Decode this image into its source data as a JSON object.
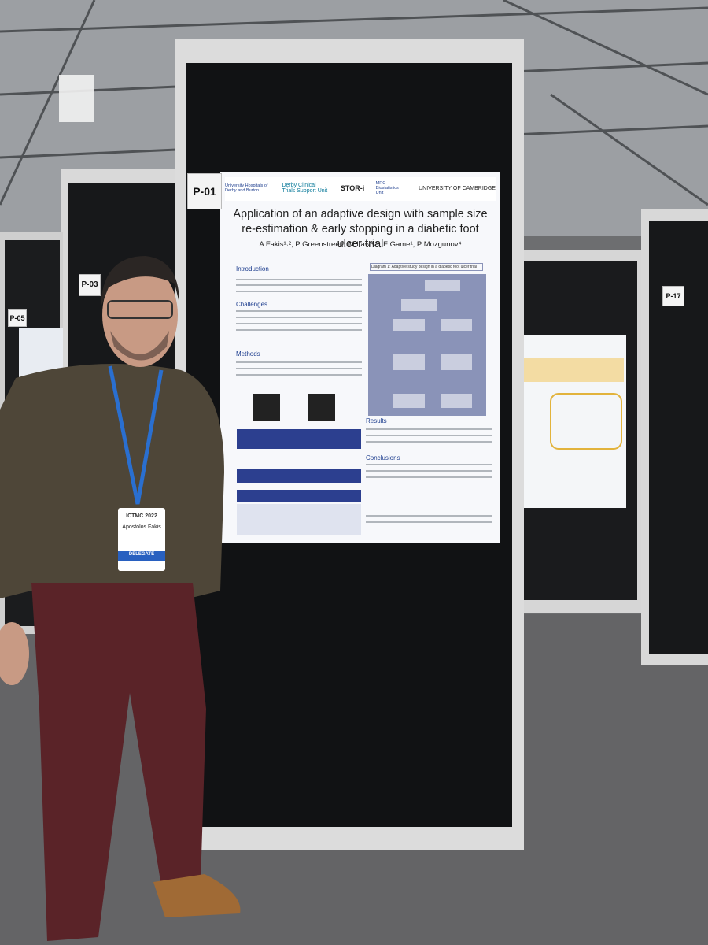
{
  "boards": [
    {
      "label": "P-01"
    },
    {
      "label": "P-03"
    },
    {
      "label": "P-05"
    },
    {
      "label": "P-17"
    }
  ],
  "poster": {
    "logos": [
      "University Hospitals of Derby and Burton",
      "Derby Clinical Trials Support Unit",
      "STOR-i",
      "MRC Biostatistics Unit",
      "UNIVERSITY OF CAMBRIDGE"
    ],
    "title": "Application of an adaptive design with sample size re-estimation & early stopping in a diabetic foot ulcer trial",
    "authors": "A Fakis¹˒², P Greenstreet³, M Law⁴˒⁵, F Game¹, P Mozgunov⁴",
    "sections": [
      "Introduction",
      "Challenges",
      "Methods",
      "Results",
      "Conclusions"
    ],
    "diagram_title": "Diagram 1: Adaptive study design in a diabetic foot ulcer trial"
  },
  "badge": {
    "event": "ICTMC 2022",
    "name": "Apostolos Fakis",
    "ribbon": "DELEGATE"
  }
}
